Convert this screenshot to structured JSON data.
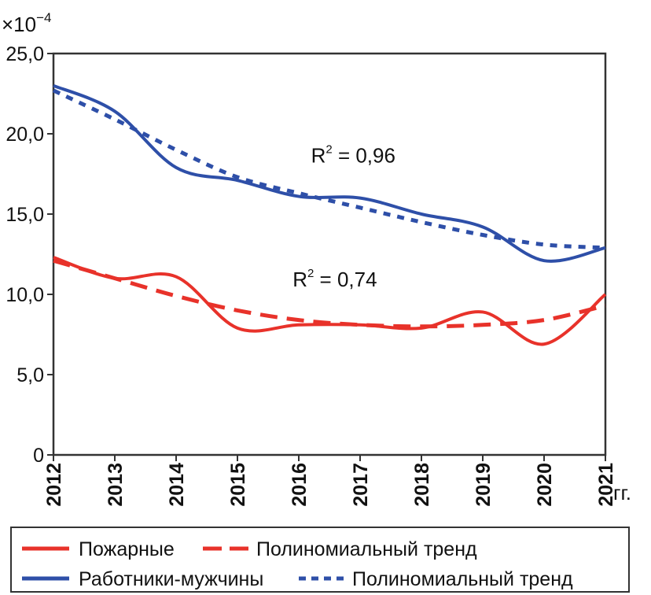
{
  "chart_data": {
    "type": "line",
    "title": "",
    "ylabel_multiplier": "×10",
    "ylabel_exponent": "−4",
    "xlabel": "гг.",
    "ylim": [
      0,
      25
    ],
    "yticks": [
      "0",
      "5,0",
      "10,0",
      "15,0",
      "20,0",
      "25,0"
    ],
    "ytick_values": [
      0,
      5,
      10,
      15,
      20,
      25
    ],
    "x": [
      2012,
      2013,
      2014,
      2015,
      2016,
      2017,
      2018,
      2019,
      2020,
      2021
    ],
    "grid": false,
    "legend_position": "bottom",
    "series": [
      {
        "name": "Пожарные",
        "style": "solid",
        "color": "#e8322a",
        "values": [
          12.3,
          11.0,
          11.1,
          7.9,
          8.1,
          8.1,
          7.9,
          8.9,
          6.9,
          10.0
        ]
      },
      {
        "name": "Полиномиальный тренд",
        "style": "dashed",
        "color": "#e8322a",
        "values": [
          12.1,
          11.0,
          9.9,
          9.0,
          8.4,
          8.1,
          8.0,
          8.1,
          8.4,
          9.3
        ]
      },
      {
        "name": "Работники-мужчины",
        "style": "solid",
        "color": "#2e4fa8",
        "values": [
          23.0,
          21.4,
          17.9,
          17.1,
          16.1,
          16.0,
          15.0,
          14.2,
          12.1,
          12.9
        ]
      },
      {
        "name": "Полиномиальный тренд",
        "style": "dotted",
        "color": "#2e4fa8",
        "values": [
          22.7,
          20.9,
          19.0,
          17.3,
          16.3,
          15.4,
          14.5,
          13.7,
          13.1,
          12.9
        ]
      }
    ],
    "annotations": [
      {
        "base": "R",
        "sup": "2",
        "text": " = 0,96",
        "series": "Работники-мужчины",
        "x": 2016.2,
        "y": 18.2
      },
      {
        "base": "R",
        "sup": "2",
        "text": " = 0,74",
        "series": "Пожарные",
        "x": 2015.9,
        "y": 10.5
      }
    ]
  }
}
